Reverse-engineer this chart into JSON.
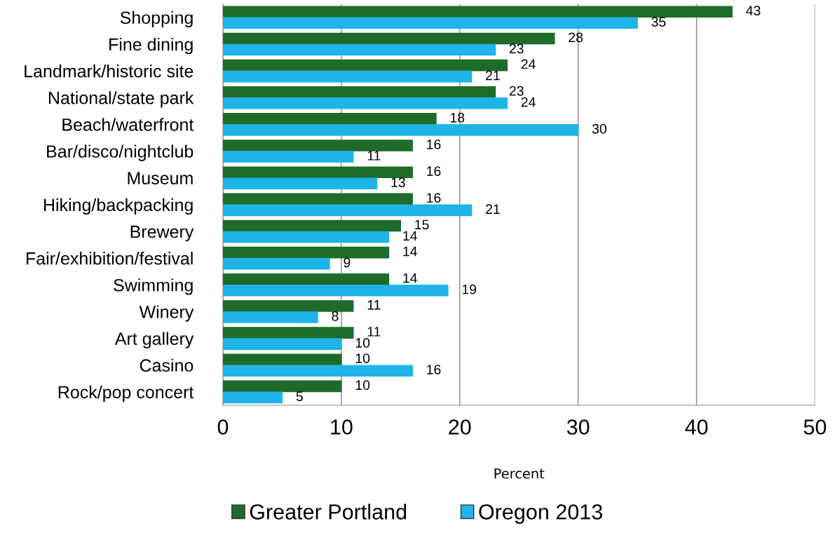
{
  "chart_data": {
    "type": "bar",
    "orientation": "horizontal",
    "xlabel": "Percent",
    "categories": [
      "Shopping",
      "Fine dining",
      "Landmark/historic site",
      "National/state park",
      "Beach/waterfront",
      "Bar/disco/nightclub",
      "Museum",
      "Hiking/backpacking",
      "Brewery",
      "Fair/exhibition/festival",
      "Swimming",
      "Winery",
      "Art gallery",
      "Casino",
      "Rock/pop concert"
    ],
    "series": [
      {
        "name": "Greater Portland",
        "color": "#1e6b2a",
        "values": [
          43,
          28,
          24,
          23,
          18,
          16,
          16,
          16,
          15,
          14,
          14,
          11,
          11,
          10,
          10
        ]
      },
      {
        "name": "Oregon 2013",
        "color": "#1fb4e8",
        "values": [
          35,
          23,
          21,
          24,
          30,
          11,
          13,
          21,
          14,
          9,
          19,
          8,
          10,
          16,
          5
        ]
      }
    ],
    "xlim": [
      0,
      50
    ],
    "xticks": [
      0,
      10,
      20,
      30,
      40,
      50
    ],
    "grid": "x",
    "legend": "bottom",
    "data_labels": true
  }
}
